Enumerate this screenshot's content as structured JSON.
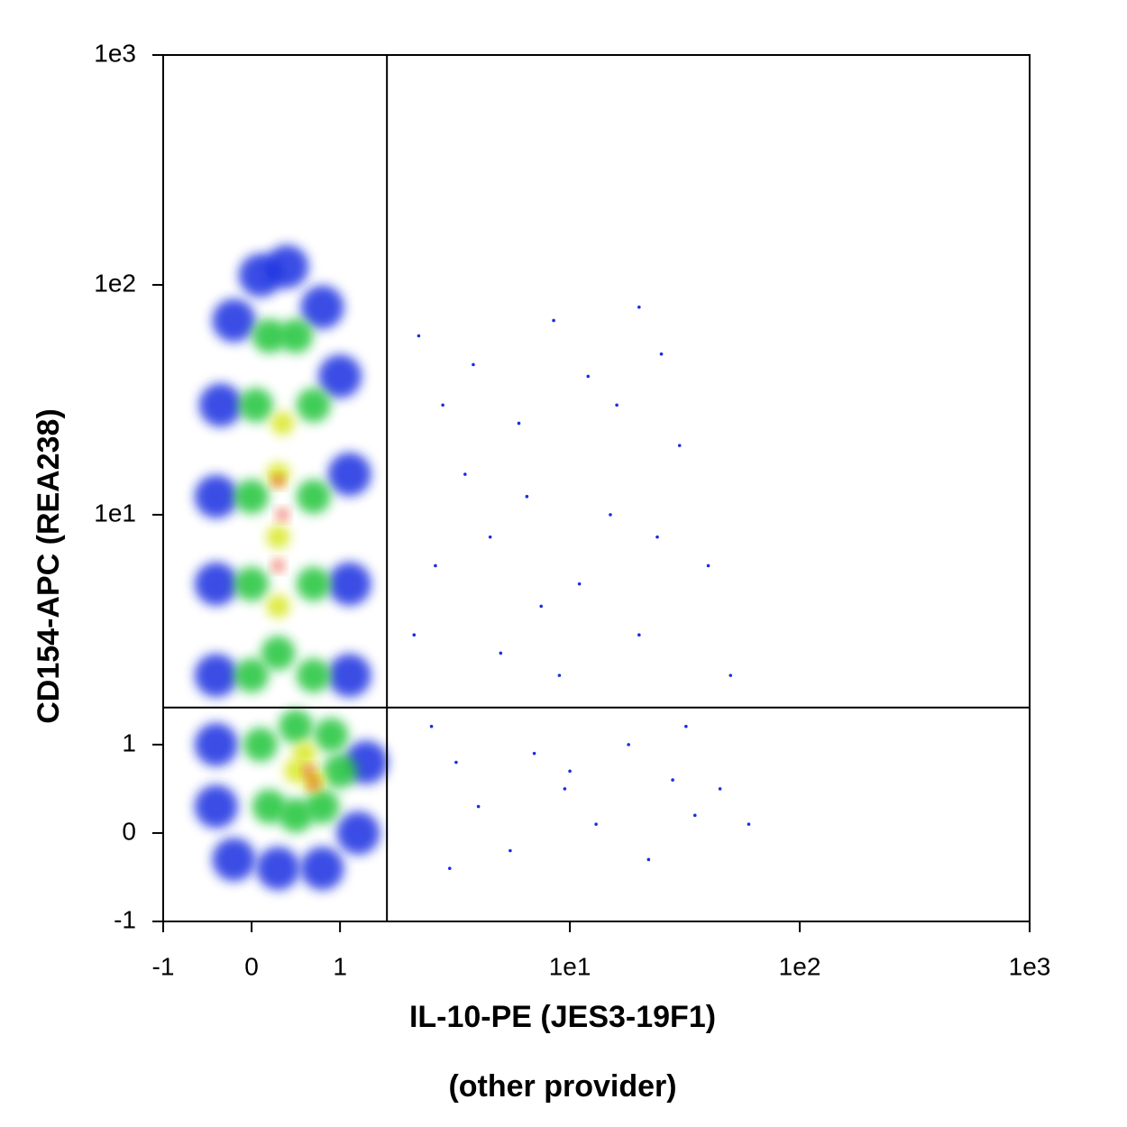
{
  "chart_data": {
    "type": "scatter",
    "xlabel": "IL-10-PE (JES3-19F1)",
    "x_note": "(other provider)",
    "ylabel": "CD154-APC (REA238)",
    "xscale": "biexponential",
    "yscale": "biexponential",
    "xlim": [
      -1,
      1000
    ],
    "ylim": [
      -1,
      1000
    ],
    "xticks": [
      -1,
      0,
      1,
      {
        "value": 10,
        "label": "1e1"
      },
      {
        "value": 100,
        "label": "1e2"
      },
      {
        "value": 1000,
        "label": "1e3"
      }
    ],
    "yticks": [
      -1,
      0,
      1,
      {
        "value": 10,
        "label": "1e1"
      },
      {
        "value": 100,
        "label": "1e2"
      },
      {
        "value": 1000,
        "label": "1e3"
      }
    ],
    "gates": {
      "x": 1.6,
      "y": 1.45
    },
    "series": [
      {
        "color": "#1a2ee0",
        "x": [
          -0.4,
          -0.4,
          -0.4,
          -0.35,
          -0.2,
          0.1,
          0.4,
          0.8,
          1.0,
          1.1,
          1.1,
          1.1,
          1.3,
          1.2,
          0.8,
          0.3,
          -0.2,
          -0.4,
          -0.4
        ],
        "y": [
          2,
          5,
          12,
          30,
          70,
          110,
          120,
          80,
          40,
          15,
          5,
          2,
          0.8,
          0,
          -0.4,
          -0.4,
          -0.3,
          0.3,
          1
        ]
      },
      {
        "color": "#22c43a",
        "x": [
          0,
          0,
          0,
          0.05,
          0.2,
          0.5,
          0.7,
          0.7,
          0.7,
          0.7,
          0.3,
          0.1,
          0.2,
          0.5,
          0.8,
          1.0,
          0.9,
          0.5
        ],
        "y": [
          2,
          5,
          12,
          30,
          60,
          60,
          30,
          12,
          5,
          2,
          2.5,
          1,
          0.3,
          0.2,
          0.3,
          0.7,
          1.1,
          1.2
        ]
      },
      {
        "color": "#d8e81c",
        "x": [
          0.3,
          0.3,
          0.3,
          0.35,
          0.5,
          0.7,
          0.6
        ],
        "y": [
          4,
          8,
          15,
          25,
          0.7,
          0.6,
          0.9
        ]
      },
      {
        "color": "#e8321a",
        "x": [
          0.3,
          0.35,
          0.3,
          0.65,
          0.7
        ],
        "y": [
          6,
          10,
          14,
          0.7,
          0.55
        ]
      },
      {
        "color": "#1a2ee0",
        "x": [
          2.2,
          2.8,
          3.5,
          4.5,
          6,
          7.5,
          9,
          12,
          15,
          20,
          25,
          30,
          40,
          50,
          2.5,
          3.2,
          4,
          5.5,
          7,
          9.5,
          13,
          18,
          22,
          28,
          35,
          2.1,
          2.6,
          3.8,
          5,
          6.5,
          8.5,
          11,
          16,
          24,
          32,
          45,
          60,
          3,
          10,
          20
        ],
        "y": [
          60,
          30,
          15,
          8,
          25,
          4,
          2,
          40,
          10,
          3,
          50,
          20,
          6,
          2,
          1.2,
          0.8,
          0.3,
          -0.2,
          0.9,
          0.5,
          0.1,
          1.0,
          -0.3,
          0.6,
          0.2,
          3,
          6,
          45,
          2.5,
          12,
          70,
          5,
          30,
          8,
          1.2,
          0.5,
          0.1,
          -0.4,
          0.7,
          80
        ]
      }
    ]
  }
}
